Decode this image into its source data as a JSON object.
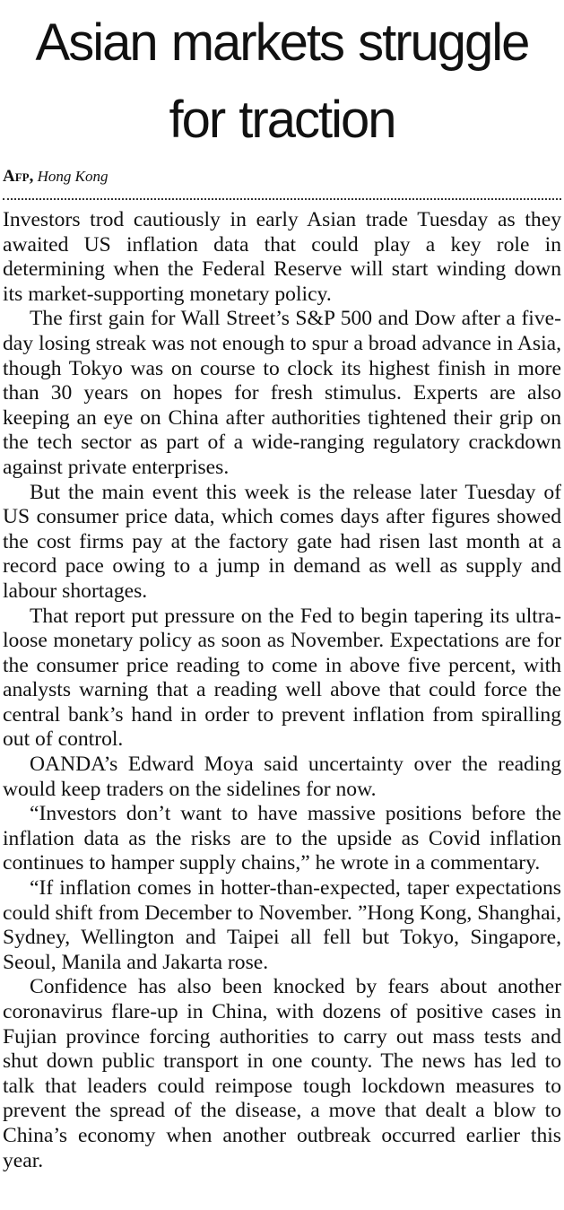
{
  "headline": {
    "line1": "Asian markets struggle",
    "line2": "for traction"
  },
  "byline": {
    "agency": "Afp,",
    "place": "Hong Kong"
  },
  "paragraphs": [
    "Investors trod cautiously in early Asian trade Tuesday as they awaited US inflation data that could play a key role in determining when the Federal Reserve will start winding down its market-supporting monetary policy.",
    "The first gain for Wall Street’s S&P 500 and Dow after a five-day losing streak was not enough to spur a broad advance in Asia, though Tokyo was on course to clock its highest finish in more than 30 years on hopes for fresh stimulus. Experts are also keeping an eye on China after authorities tightened their grip on the tech sector as part of a wide-ranging regulatory crackdown against private enterprises.",
    "But the main event this week is the release later Tuesday of US consumer price data, which comes days after figures showed the cost firms pay at the factory gate had risen last month at a record pace owing to a jump in demand as well as supply and labour shortages.",
    "That report put pressure on the Fed to begin tapering its ultra-loose monetary policy as soon as November. Expectations are for the consumer price reading to come in above five percent, with analysts warning that a reading well above that could force the central bank’s hand in order to prevent inflation from spiralling out of control.",
    "OANDA’s Edward Moya said uncertainty over the reading would keep traders on the sidelines for now.",
    "“Investors don’t want to have massive positions before the inflation data as the risks are to the upside as Covid inflation continues to hamper supply chains,” he wrote in a commentary.",
    "“If inflation comes in hotter-than-expected, taper expectations could shift from December to November. ”Hong Kong, Shanghai, Sydney, Wellington and Taipei all fell but Tokyo, Singapore, Seoul, Manila and Jakarta rose.",
    "Confidence has also been knocked by fears about another coronavirus flare-up in China, with dozens of positive cases in Fujian province forcing authorities to carry out mass tests and shut down public transport in one county. The news has led to talk that leaders could reimpose tough lockdown measures to prevent the spread of the disease, a move that dealt a blow to China’s economy when another outbreak occurred earlier this year."
  ]
}
